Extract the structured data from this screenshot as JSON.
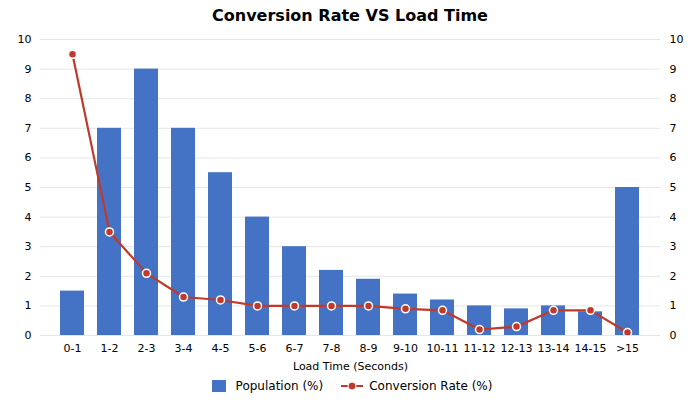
{
  "chart_data": {
    "type": "bar",
    "title": "Conversion Rate VS Load Time",
    "xlabel": "Load Time (Seconds)",
    "categories": [
      "0-1",
      "1-2",
      "2-3",
      "3-4",
      "4-5",
      "5-6",
      "6-7",
      "7-8",
      "8-9",
      "9-10",
      "10-11",
      "11-12",
      "12-13",
      "13-14",
      "14-15",
      ">15"
    ],
    "series": [
      {
        "name": "Population (%)",
        "type": "bar",
        "color": "#4472C4",
        "values": [
          1.5,
          7.0,
          9.0,
          7.0,
          5.5,
          4.0,
          3.0,
          2.2,
          1.9,
          1.4,
          1.2,
          1.0,
          0.9,
          1.0,
          0.8,
          5.0
        ]
      },
      {
        "name": "Conversion Rate (%)",
        "type": "line",
        "axis": "y2",
        "color": "#C0392B",
        "marker": "circle",
        "values": [
          9.5,
          3.5,
          2.1,
          1.3,
          1.2,
          1.0,
          1.0,
          1.0,
          1.0,
          0.9,
          0.85,
          0.2,
          0.3,
          0.85,
          0.85,
          0.1
        ]
      }
    ],
    "ylim": [
      0,
      10
    ],
    "yticks": [
      0,
      1,
      2,
      3,
      4,
      5,
      6,
      7,
      8,
      9,
      10
    ],
    "y2lim": [
      0,
      10
    ],
    "y2ticks": [
      0,
      1,
      2,
      3,
      4,
      5,
      6,
      7,
      8,
      9,
      10
    ],
    "grid": true,
    "legend": "bottom"
  }
}
